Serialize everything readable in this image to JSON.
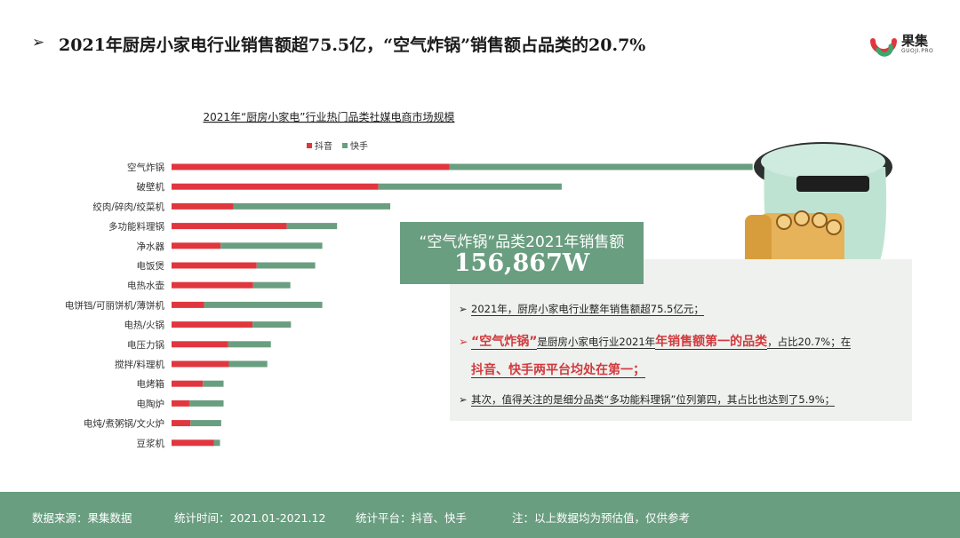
{
  "header": {
    "title": "2021年厨房小家电行业销售额超75.5亿，“空气炸锅”销售额占品类的20.7%"
  },
  "logo": {
    "brand": "果集",
    "sub": "GUOJI.PRO"
  },
  "chart_data": {
    "type": "bar",
    "orientation": "horizontal",
    "stacked": true,
    "title": "2021年“厨房小家电”行业热门品类社媒电商市场规模",
    "legend_position": "top",
    "categories": [
      "空气炸锅",
      "破壁机",
      "绞肉/碎肉/绞菜机",
      "多功能料理锅",
      "净水器",
      "电饭煲",
      "电热水壶",
      "电饼铛/可丽饼机/薄饼机",
      "电热/火锅",
      "电压力锅",
      "搅拌/料理机",
      "电烤箱",
      "电陶炉",
      "电炖/煮粥锅/文火炉",
      "豆浆机"
    ],
    "series": [
      {
        "name": "抖音",
        "color": "#e0373f",
        "values": [
          47.0,
          35.0,
          10.5,
          19.5,
          8.3,
          14.4,
          13.8,
          5.5,
          13.7,
          9.6,
          9.7,
          5.3,
          3.0,
          3.2,
          7.2
        ]
      },
      {
        "name": "快手",
        "color": "#6a9e80",
        "values": [
          51.3,
          31.0,
          26.5,
          8.5,
          17.2,
          9.9,
          6.3,
          20.0,
          6.5,
          7.2,
          6.5,
          3.5,
          5.8,
          5.2,
          1.0
        ]
      }
    ],
    "xlim": [
      0,
      100
    ],
    "grid": false
  },
  "callout": {
    "title": "“空气炸锅”品类2021年销售额",
    "value": "156,867W"
  },
  "notes": {
    "marker": "➢",
    "n1": "2021年，厨房小家电行业整年销售额超75.5亿元；",
    "n2_part1": "“空气炸锅”",
    "n2_part2": "是厨房小家电行业2021年",
    "n2_part3": "年销售额第一的品类",
    "n2_part4": "，占比20.7%；在",
    "n2_line2": "抖音、快手两平台均处在第一；",
    "n3": "其次，值得关注的是细分品类“多功能料理锅”位列第四，其占比也达到了5.9%；"
  },
  "footer": {
    "source": "数据来源：果集数据",
    "period": "统计时间：2021.01-2021.12",
    "platform": "统计平台：抖音、快手",
    "note": "注：以上数据均为预估值，仅供参考"
  }
}
